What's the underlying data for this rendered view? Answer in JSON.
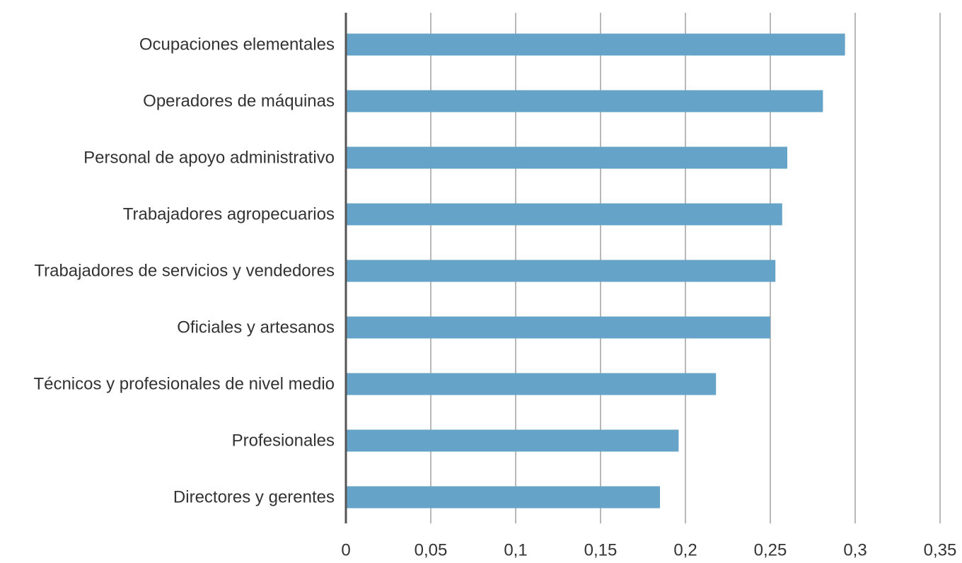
{
  "chart_data": {
    "type": "bar",
    "orientation": "horizontal",
    "categories": [
      "Ocupaciones elementales",
      "Operadores de máquinas",
      "Personal de apoyo administrativo",
      "Trabajadores agropecuarios",
      "Trabajadores de servicios y vendedores",
      "Oficiales y artesanos",
      "Técnicos y profesionales de nivel medio",
      "Profesionales",
      "Directores y gerentes"
    ],
    "values": [
      0.294,
      0.281,
      0.26,
      0.257,
      0.253,
      0.25,
      0.218,
      0.196,
      0.185
    ],
    "title": "",
    "xlabel": "",
    "ylabel": "",
    "xlim": [
      0,
      0.35
    ],
    "x_ticks": [
      0,
      0.05,
      0.1,
      0.15,
      0.2,
      0.25,
      0.3,
      0.35
    ],
    "x_tick_labels": [
      "0",
      "0,05",
      "0,1",
      "0,15",
      "0,2",
      "0,25",
      "0,3",
      "0,35"
    ],
    "grid": "vertical",
    "legend": "none",
    "colors": {
      "bar": "#66a3c9",
      "grid": "#b8b8b8",
      "axis": "#555555",
      "text": "#333333"
    }
  }
}
